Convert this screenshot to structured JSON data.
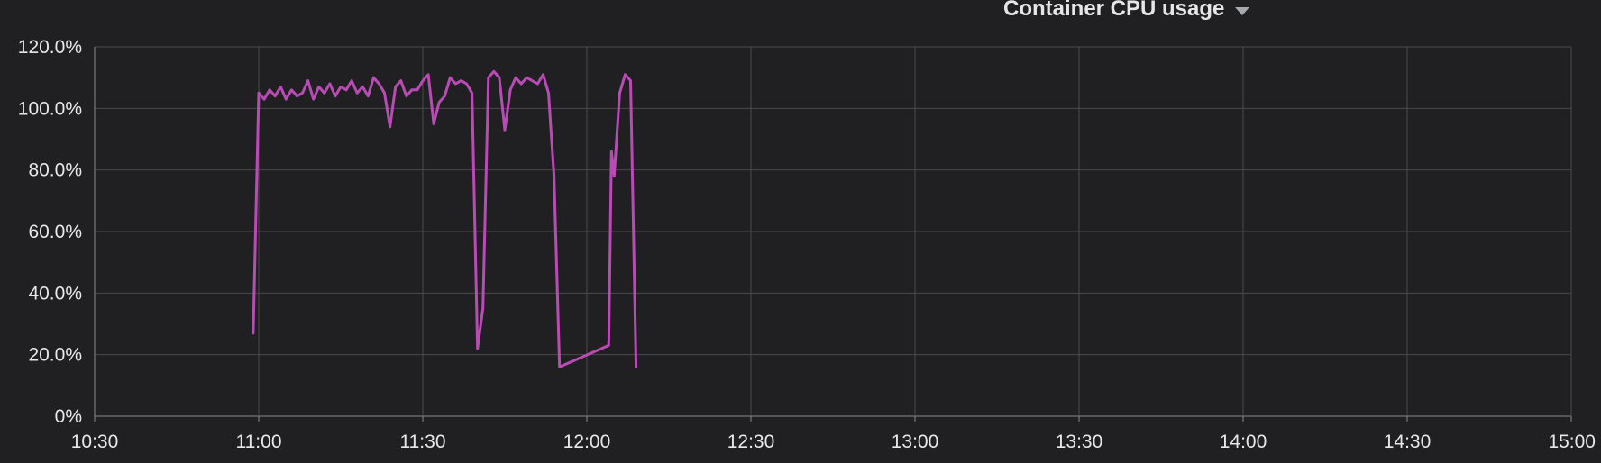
{
  "panel": {
    "title": "Container CPU usage",
    "menu_icon": "chevron-down-icon"
  },
  "colors": {
    "background": "#202023",
    "grid": "#4a4a4e",
    "axis": "#8a8a8e",
    "series": "#b94bb5"
  },
  "chart_data": {
    "type": "line",
    "title": "Container CPU usage",
    "xlabel": "",
    "ylabel": "",
    "x_range": [
      "10:30",
      "15:00"
    ],
    "ylim": [
      0,
      120
    ],
    "y_ticks": [
      "0%",
      "20.0%",
      "40.0%",
      "60.0%",
      "80.0%",
      "100.0%",
      "120.0%"
    ],
    "x_ticks": [
      "10:30",
      "11:00",
      "11:30",
      "12:00",
      "12:30",
      "13:00",
      "13:30",
      "14:00",
      "14:30",
      "15:00"
    ],
    "grid": true,
    "legend": "none",
    "series": [
      {
        "color": "#b94bb5",
        "points": [
          [
            "10:59",
            27
          ],
          [
            "11:00",
            105
          ],
          [
            "11:01",
            103
          ],
          [
            "11:02",
            106
          ],
          [
            "11:03",
            104
          ],
          [
            "11:04",
            107
          ],
          [
            "11:05",
            103
          ],
          [
            "11:06",
            106
          ],
          [
            "11:07",
            104
          ],
          [
            "11:08",
            105
          ],
          [
            "11:09",
            109
          ],
          [
            "11:10",
            103
          ],
          [
            "11:11",
            107
          ],
          [
            "11:12",
            105
          ],
          [
            "11:13",
            108
          ],
          [
            "11:14",
            104
          ],
          [
            "11:15",
            107
          ],
          [
            "11:16",
            106
          ],
          [
            "11:17",
            109
          ],
          [
            "11:18",
            105
          ],
          [
            "11:19",
            107
          ],
          [
            "11:20",
            104
          ],
          [
            "11:21",
            110
          ],
          [
            "11:22",
            108
          ],
          [
            "11:23",
            105
          ],
          [
            "11:24",
            94
          ],
          [
            "11:25",
            107
          ],
          [
            "11:26",
            109
          ],
          [
            "11:27",
            104
          ],
          [
            "11:28",
            106
          ],
          [
            "11:29",
            106
          ],
          [
            "11:30",
            109
          ],
          [
            "11:31",
            111
          ],
          [
            "11:32",
            95
          ],
          [
            "11:33",
            102
          ],
          [
            "11:34",
            104
          ],
          [
            "11:35",
            110
          ],
          [
            "11:36",
            108
          ],
          [
            "11:37",
            109
          ],
          [
            "11:38",
            108
          ],
          [
            "11:39",
            105
          ],
          [
            "11:40",
            22
          ],
          [
            "11:41",
            35
          ],
          [
            "11:42",
            110
          ],
          [
            "11:43",
            112
          ],
          [
            "11:44",
            110
          ],
          [
            "11:45",
            93
          ],
          [
            "11:46",
            106
          ],
          [
            "11:47",
            110
          ],
          [
            "11:48",
            108
          ],
          [
            "11:49",
            110
          ],
          [
            "11:50",
            109
          ],
          [
            "11:51",
            108
          ],
          [
            "11:52",
            111
          ],
          [
            "11:53",
            105
          ],
          [
            "11:54",
            78
          ],
          [
            "11:55",
            16
          ],
          [
            "12:04",
            23
          ],
          [
            "12:04",
            86
          ],
          [
            "12:05",
            78
          ],
          [
            "12:06",
            105
          ],
          [
            "12:07",
            111
          ],
          [
            "12:08",
            109
          ],
          [
            "12:09",
            16
          ]
        ]
      }
    ]
  }
}
